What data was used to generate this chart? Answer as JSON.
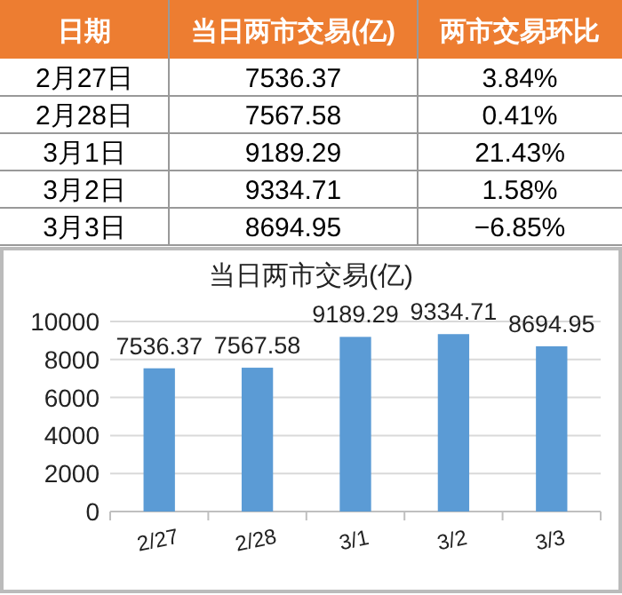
{
  "chart_data": [
    {
      "type": "other",
      "categories": [
        "日期",
        "当日两市交易(亿)",
        "两市交易环比"
      ],
      "annotations": [
        "2月27日",
        "7536.37",
        "3.84%",
        "2月28日",
        "7567.58",
        "0.41%",
        "3月1日",
        "9189.29",
        "21.43%",
        "3月2日",
        "9334.71",
        "1.58%",
        "3月3日",
        "8694.95",
        "−6.85%"
      ]
    },
    {
      "type": "bar",
      "title": "当日两市交易(亿)",
      "categories": [
        "2/27",
        "2/28",
        "3/1",
        "3/2",
        "3/3"
      ],
      "values": [
        7536.37,
        7567.58,
        9189.29,
        9334.71,
        8694.95
      ],
      "color": "#5b9bd5",
      "ylim": [
        0,
        10000
      ],
      "yticks": [
        0,
        2000,
        4000,
        6000,
        8000,
        10000
      ],
      "grid": "y",
      "data_labels": true
    }
  ]
}
